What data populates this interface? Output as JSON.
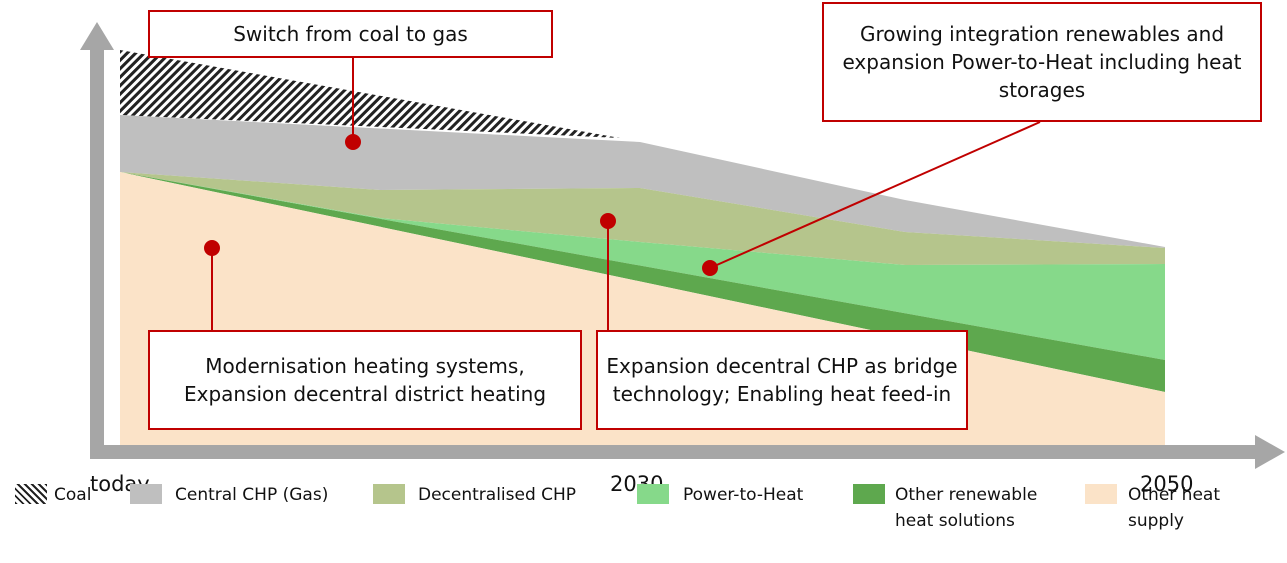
{
  "x_labels": [
    "today",
    "2030",
    "2050"
  ],
  "callouts": [
    "Switch from coal to gas",
    "Growing integration renewables and expansion Power-to-Heat including heat storages",
    "Modernisation heating systems, Expansion decentral district heating",
    "Expansion decentral CHP as bridge technology; Enabling heat feed-in"
  ],
  "legend": [
    "Coal",
    "Central CHP (Gas)",
    "Decentralised CHP",
    "Power-to-Heat",
    "Other renewable heat solutions",
    "Other heat supply"
  ]
}
